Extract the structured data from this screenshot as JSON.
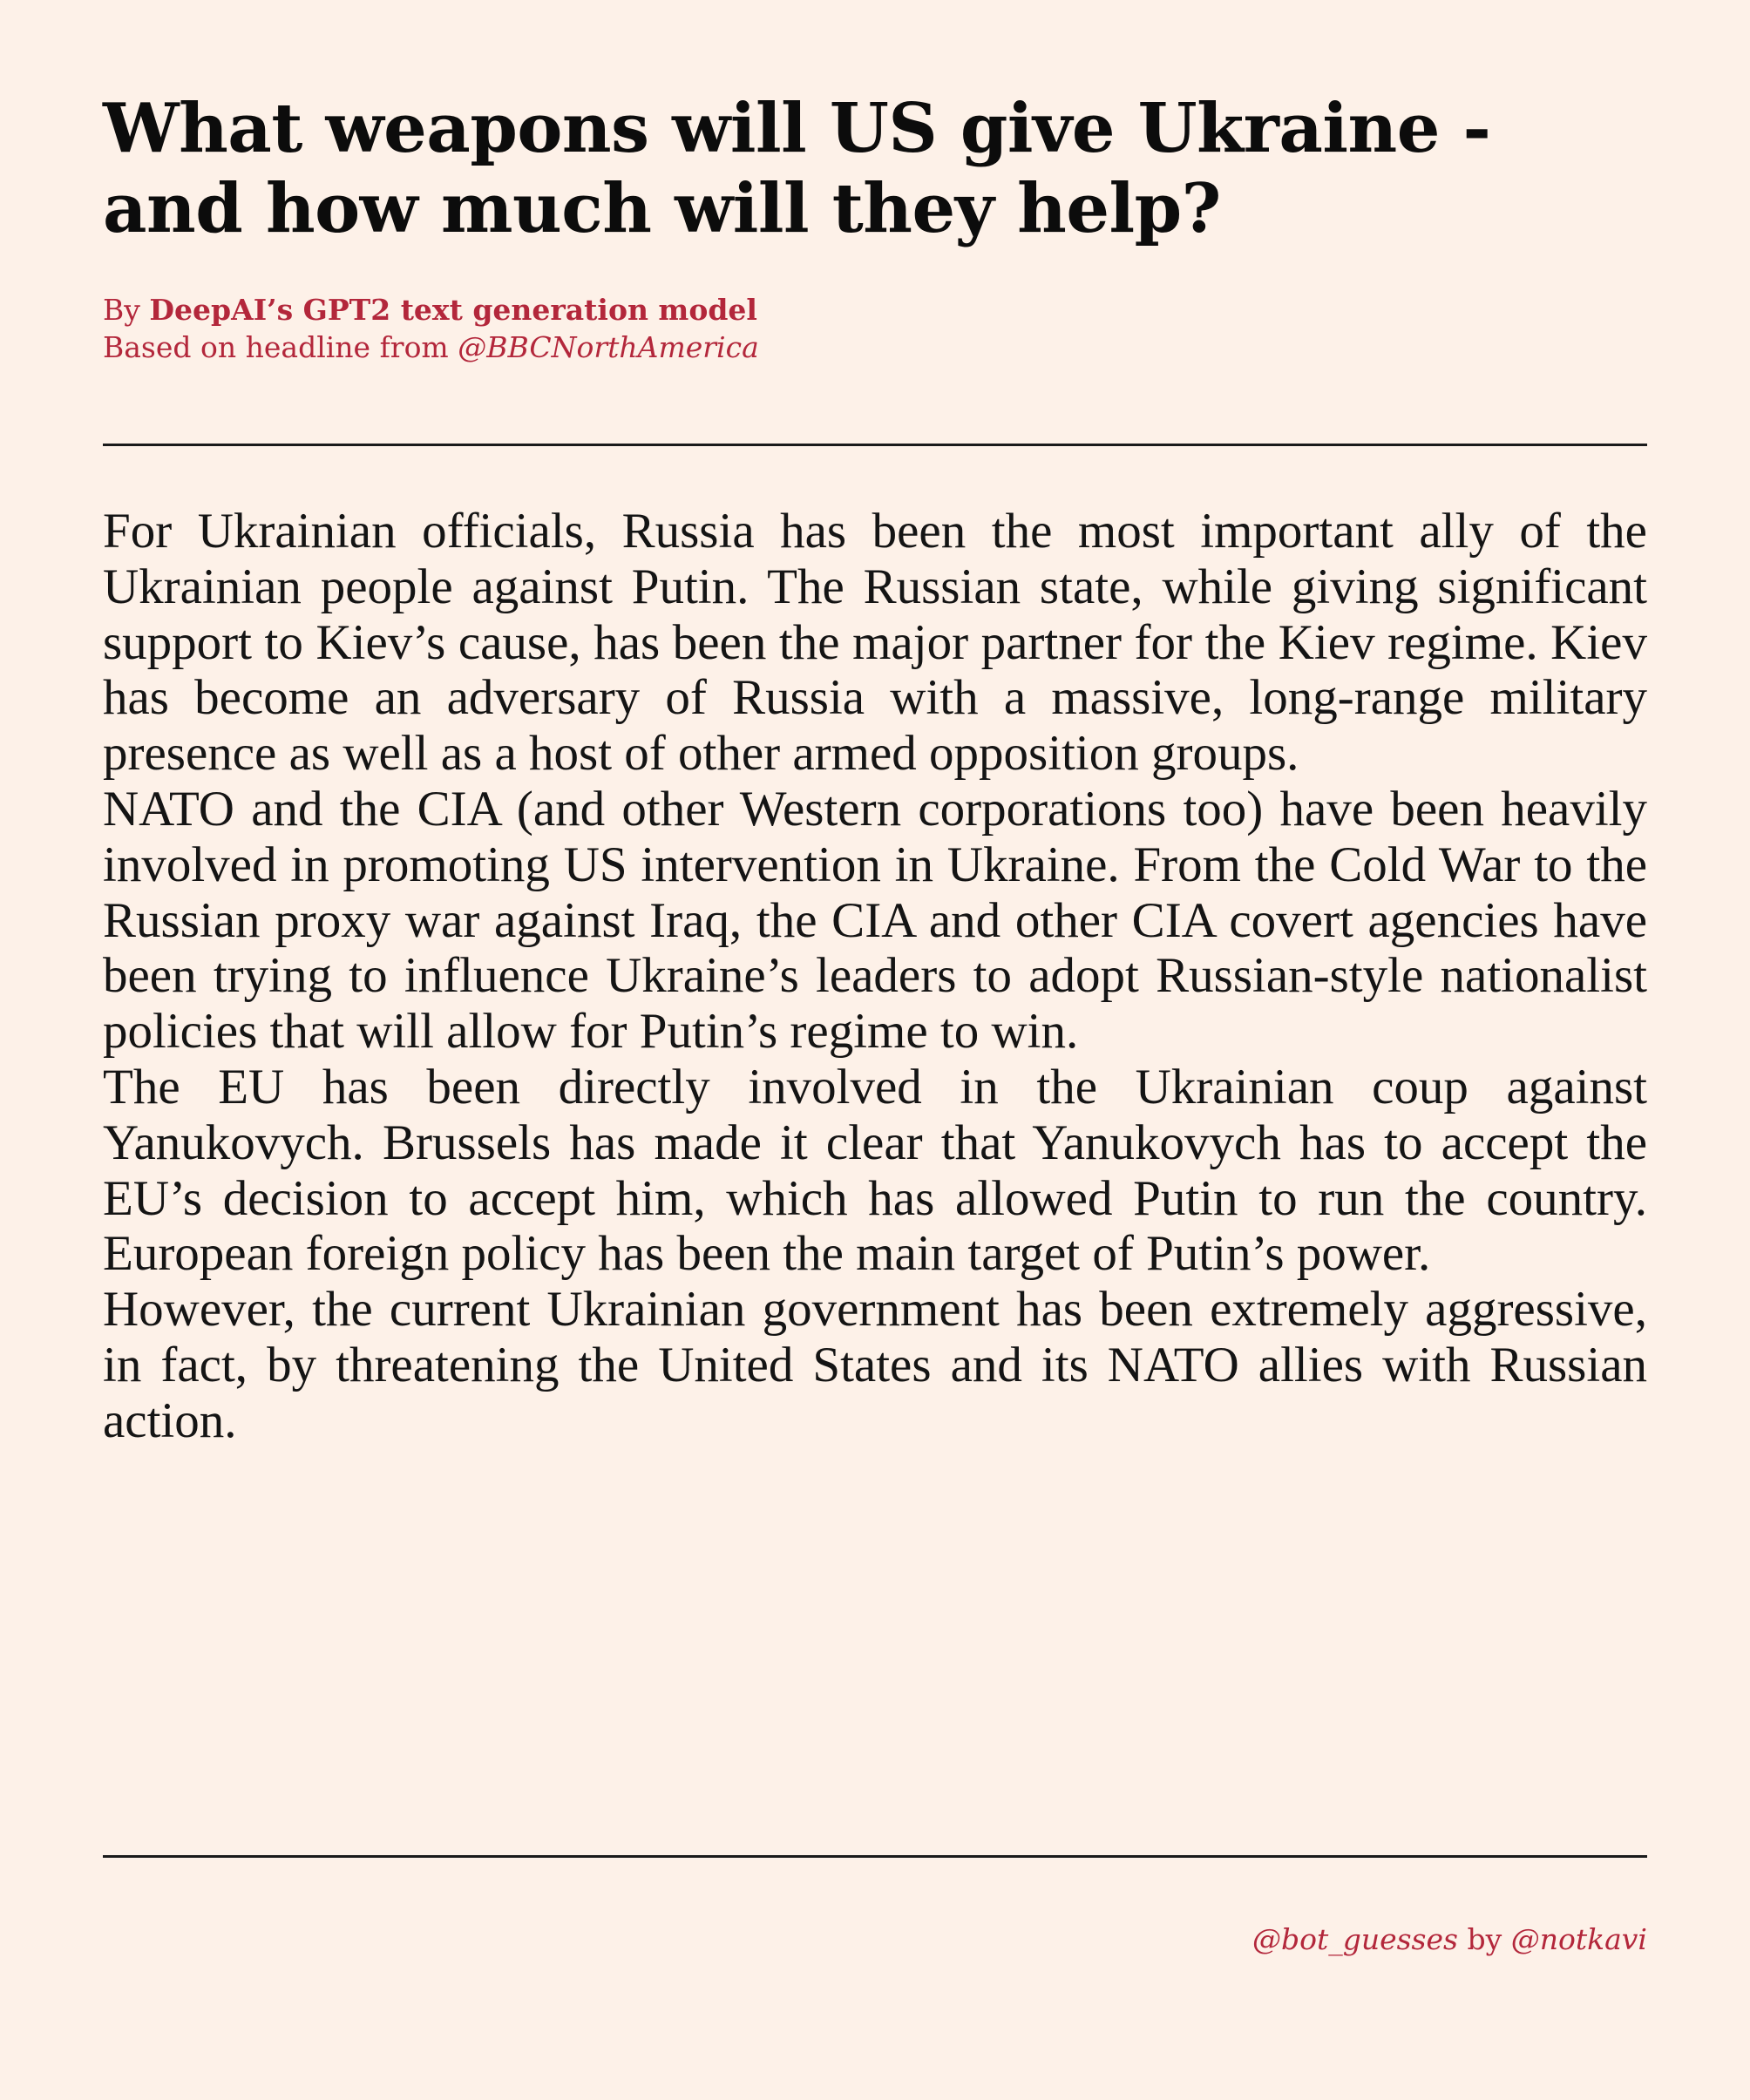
{
  "headline": "What weapons will US give Ukraine - and how much will they help?",
  "byline": {
    "by_prefix": "By",
    "author": "DeepAI’s GPT2 text generation model",
    "based_on_prefix": "Based on headline from",
    "source_handle": "@BBCNorthAmerica"
  },
  "article": {
    "paragraphs": [
      "For Ukrainian officials, Russia has been the most important ally of the Ukrainian people against Putin.  The Russian state, while giving significant support to Kiev’s cause, has been the major partner for the Kiev regime.  Kiev has become an adversary of Russia with a massive, long-range military presence as well as a host of other armed opposition groups.",
      "NATO and the CIA (and other Western corporations too) have been heavily involved in promoting US intervention in Ukraine. From the Cold War to the Russian proxy war against Iraq, the CIA and other CIA covert agencies have been trying to influence Ukraine’s leaders to adopt Russian-style nationalist policies that will allow for Putin’s regime to win.",
      "The EU has been directly involved in the Ukrainian coup against Yanukovych.  Brussels has made it clear that Yanukovych has to accept the EU’s decision to accept him, which has allowed Putin to run the country.  European foreign policy has been the main target of Putin’s power.",
      "However, the current Ukrainian government has been extremely aggressive, in fact, by threatening the United States and its NATO allies with Russian action."
    ]
  },
  "footer": {
    "bot_handle": "@bot_guesses",
    "by_word": "by",
    "author_handle": "@notkavi"
  },
  "colors": {
    "background": "#fdf1e8",
    "accent": "#b3273b",
    "text": "#141414"
  }
}
